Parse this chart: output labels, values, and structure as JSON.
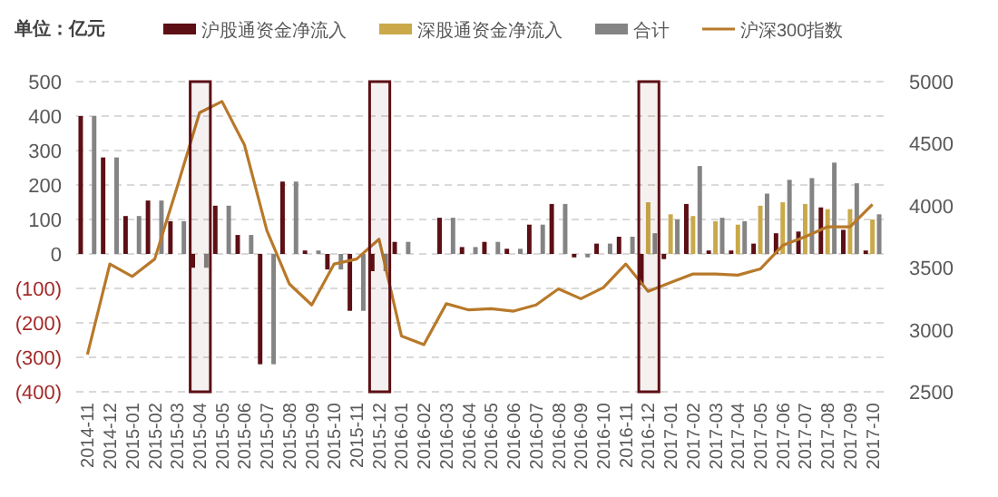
{
  "chart_data": {
    "type": "bar",
    "ylabel": "单位：亿元",
    "legend": "top",
    "grid": "y",
    "categories": [
      "2014-11",
      "2014-12",
      "2015-01",
      "2015-02",
      "2015-03",
      "2015-04",
      "2015-05",
      "2015-06",
      "2015-07",
      "2015-08",
      "2015-09",
      "2015-10",
      "2015-11",
      "2015-12",
      "2016-01",
      "2016-02",
      "2016-03",
      "2016-04",
      "2016-05",
      "2016-06",
      "2016-07",
      "2016-08",
      "2016-09",
      "2016-10",
      "2016-11",
      "2016-12",
      "2017-01",
      "2017-02",
      "2017-03",
      "2017-04",
      "2017-05",
      "2017-06",
      "2017-07",
      "2017-08",
      "2017-09",
      "2017-10"
    ],
    "series": [
      {
        "name": "沪股通资金净流入",
        "color": "#5c0f14",
        "values": [
          400,
          280,
          110,
          155,
          95,
          -40,
          140,
          55,
          -320,
          210,
          10,
          -45,
          -165,
          -50,
          35,
          0,
          105,
          20,
          35,
          15,
          85,
          145,
          -10,
          30,
          50,
          -90,
          -15,
          145,
          10,
          10,
          30,
          60,
          65,
          135,
          70,
          10
        ]
      },
      {
        "name": "深股通资金净流入",
        "color": "#c9a94a",
        "values": [
          null,
          null,
          null,
          null,
          null,
          null,
          null,
          null,
          null,
          null,
          null,
          null,
          null,
          null,
          null,
          null,
          null,
          null,
          null,
          null,
          null,
          null,
          null,
          null,
          null,
          150,
          115,
          110,
          95,
          85,
          140,
          150,
          145,
          130,
          130,
          100
        ]
      },
      {
        "name": "合计",
        "color": "#848484",
        "values": [
          400,
          280,
          110,
          155,
          95,
          -40,
          140,
          55,
          -320,
          210,
          10,
          -45,
          -165,
          -50,
          35,
          0,
          105,
          20,
          35,
          15,
          85,
          145,
          -10,
          30,
          50,
          60,
          100,
          255,
          105,
          95,
          175,
          215,
          220,
          265,
          205,
          115
        ]
      },
      {
        "name": "沪深300指数",
        "type": "line",
        "axis": "y2",
        "color": "#b8792a",
        "values": [
          2800,
          3530,
          3430,
          3570,
          4150,
          4750,
          4840,
          4490,
          3800,
          3370,
          3200,
          3530,
          3570,
          3730,
          2950,
          2880,
          3210,
          3160,
          3170,
          3150,
          3200,
          3330,
          3250,
          3340,
          3530,
          3310,
          3380,
          3450,
          3450,
          3440,
          3490,
          3680,
          3750,
          3830,
          3830,
          4010
        ]
      }
    ],
    "bands": [
      {
        "axis": "x",
        "from": "2015-04",
        "to": "2015-04",
        "color": "#5c0f14"
      },
      {
        "axis": "x",
        "from": "2015-12",
        "to": "2015-12",
        "color": "#5c0f14"
      },
      {
        "axis": "x",
        "from": "2016-12",
        "to": "2016-12",
        "color": "#5c0f14"
      }
    ],
    "ylim": [
      -400,
      500
    ],
    "yticks": [
      {
        "value": -400,
        "label": "(400)"
      },
      {
        "value": -300,
        "label": "(300)"
      },
      {
        "value": -200,
        "label": "(200)"
      },
      {
        "value": -100,
        "label": "(100)"
      },
      0,
      100,
      200,
      300,
      400,
      500
    ],
    "y2lim": [
      2500,
      5000
    ],
    "y2ticks": [
      2500,
      3000,
      3500,
      4000,
      4500,
      5000
    ]
  }
}
